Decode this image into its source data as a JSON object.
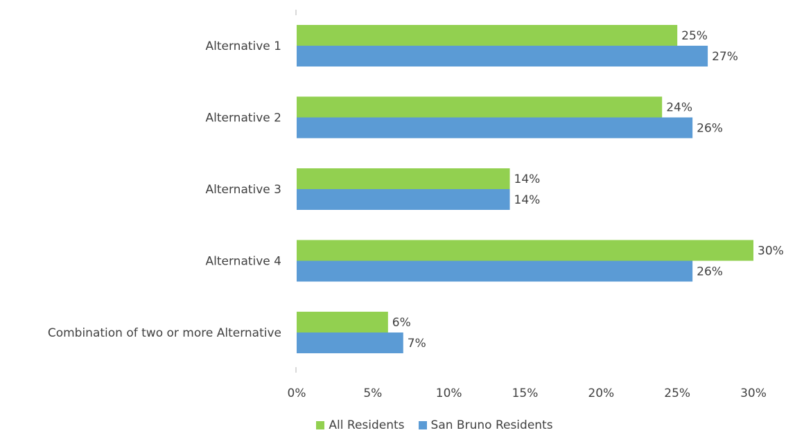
{
  "chart_data": {
    "type": "bar",
    "orientation": "horizontal",
    "categories": [
      "Alternative 1",
      "Alternative 2",
      "Alternative 3",
      "Alternative 4",
      "Combination of two or more Alternative"
    ],
    "series": [
      {
        "name": "All Residents",
        "color": "#92d050",
        "values": [
          25,
          24,
          14,
          30,
          6
        ],
        "labels": [
          "25%",
          "24%",
          "14%",
          "30%",
          "6%"
        ]
      },
      {
        "name": "San Bruno Residents",
        "color": "#5b9bd5",
        "values": [
          27,
          26,
          14,
          26,
          7
        ],
        "labels": [
          "27%",
          "26%",
          "14%",
          "26%",
          "7%"
        ]
      }
    ],
    "x_ticks": [
      "0%",
      "5%",
      "10%",
      "15%",
      "20%",
      "25%",
      "30%"
    ],
    "xlim": [
      0,
      30
    ],
    "title": "",
    "xlabel": "",
    "ylabel": "",
    "legend_position": "bottom",
    "grid": false
  }
}
